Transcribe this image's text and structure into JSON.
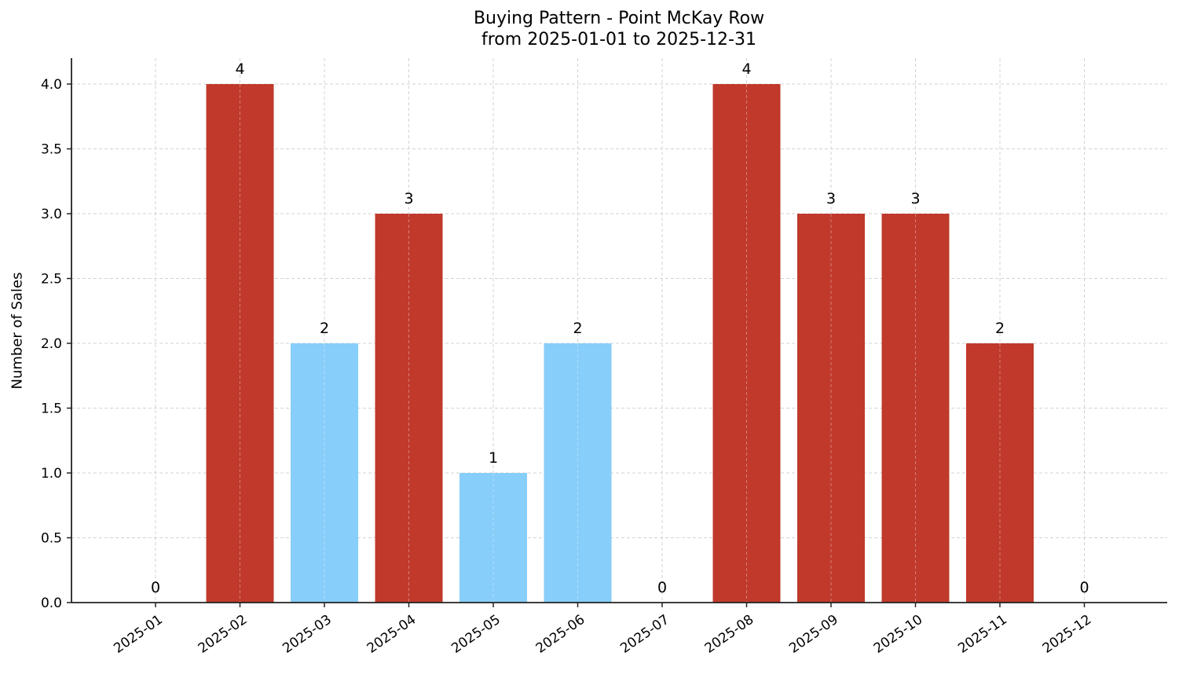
{
  "chart_data": {
    "type": "bar",
    "title": "Buying Pattern - Point McKay Row",
    "subtitle": "from 2025-01-01 to 2025-12-31",
    "xlabel": "",
    "ylabel": "Number of Sales",
    "categories": [
      "2025-01",
      "2025-02",
      "2025-03",
      "2025-04",
      "2025-05",
      "2025-06",
      "2025-07",
      "2025-08",
      "2025-09",
      "2025-10",
      "2025-11",
      "2025-12"
    ],
    "values": [
      0,
      4,
      2,
      3,
      1,
      2,
      0,
      4,
      3,
      3,
      2,
      0
    ],
    "bar_colors": [
      "#c0392b",
      "#c0392b",
      "#87cefa",
      "#c0392b",
      "#87cefa",
      "#87cefa",
      "#c0392b",
      "#c0392b",
      "#c0392b",
      "#c0392b",
      "#c0392b",
      "#c0392b"
    ],
    "data_labels": [
      "0",
      "4",
      "2",
      "3",
      "1",
      "2",
      "0",
      "4",
      "3",
      "3",
      "2",
      "0"
    ],
    "yticks": [
      "0.0",
      "0.5",
      "1.0",
      "1.5",
      "2.0",
      "2.5",
      "3.0",
      "3.5",
      "4.0"
    ],
    "ylim": [
      0,
      4.2
    ],
    "grid": true,
    "legend": null
  }
}
